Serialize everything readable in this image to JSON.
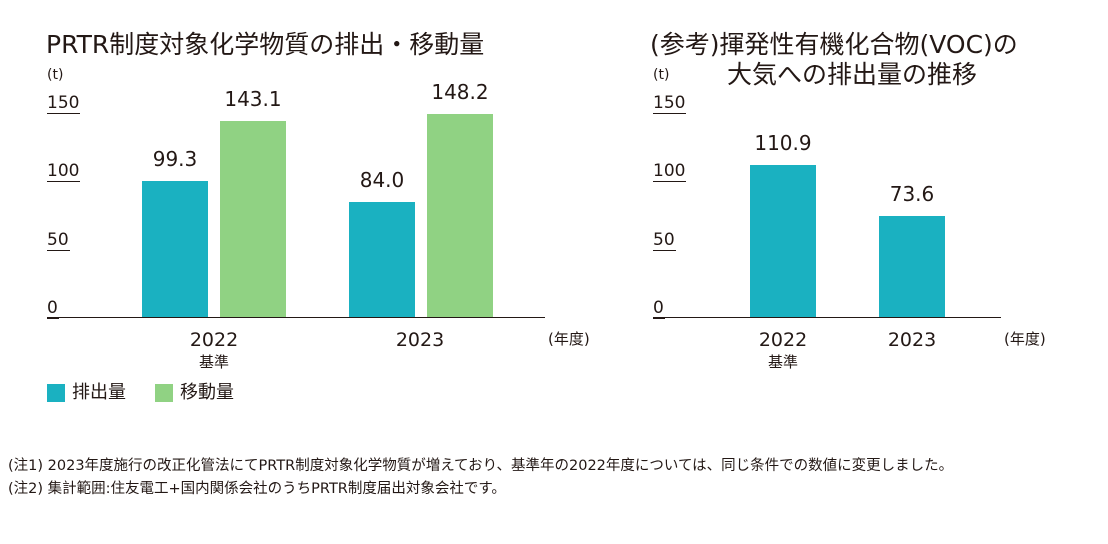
{
  "colors": {
    "emission": "#1AB1C1",
    "transfer": "#90D283",
    "axis": "#231815"
  },
  "chart_data": [
    {
      "type": "bar",
      "title": "PRTR制度対象化学物質の排出・移動量",
      "ylabel": "(t)",
      "xlabel": "(年度)",
      "ylim": [
        0,
        150
      ],
      "yticks": [
        "150",
        "100",
        "50",
        "0"
      ],
      "categories": [
        "2022",
        "2023"
      ],
      "category_sublabels": [
        "基準",
        ""
      ],
      "series": [
        {
          "name": "排出量",
          "values": [
            99.3,
            84.0
          ],
          "labels": [
            "99.3",
            "84.0"
          ]
        },
        {
          "name": "移動量",
          "values": [
            143.1,
            148.2
          ],
          "labels": [
            "143.1",
            "148.2"
          ]
        }
      ]
    },
    {
      "type": "bar",
      "title_line1": "(参考)揮発性有機化合物(VOC)の",
      "title_line2": "大気への排出量の推移",
      "ylabel": "(t)",
      "xlabel": "(年度)",
      "ylim": [
        0,
        150
      ],
      "yticks": [
        "150",
        "100",
        "50",
        "0"
      ],
      "categories": [
        "2022",
        "2023"
      ],
      "category_sublabels": [
        "基準",
        ""
      ],
      "series": [
        {
          "name": "排出量",
          "values": [
            110.9,
            73.6
          ],
          "labels": [
            "110.9",
            "73.6"
          ]
        }
      ]
    }
  ],
  "legend": [
    {
      "name": "排出量",
      "color": "#1AB1C1"
    },
    {
      "name": "移動量",
      "color": "#90D283"
    }
  ],
  "notes": [
    "(注1) 2023年度施行の改正化管法にてPRTR制度対象化学物質が増えており、基準年の2022年度については、同じ条件での数値に変更しました。",
    "(注2) 集計範囲:住友電工+国内関係会社のうちPRTR制度届出対象会社です。"
  ]
}
